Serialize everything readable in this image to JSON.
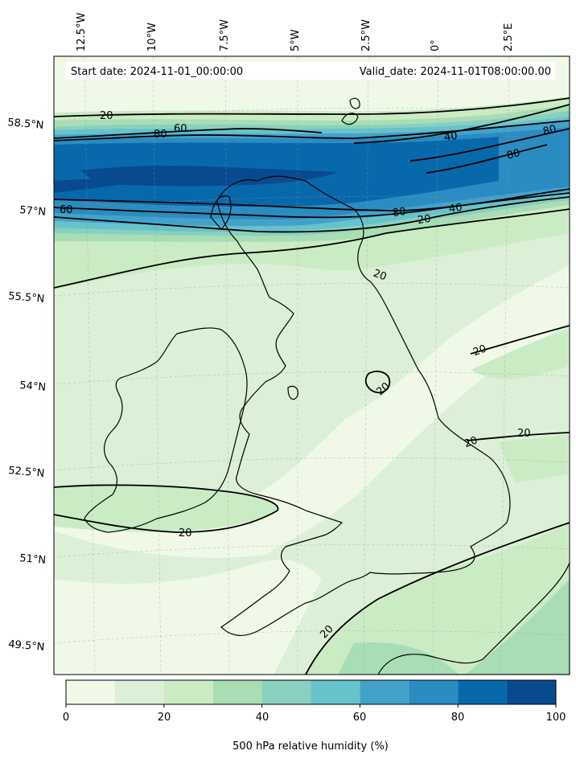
{
  "map": {
    "start_date_text": "Start date: 2024-11-01_00:00:00",
    "valid_date_text": "Valid_date: 2024-11-01T08:00:00.00",
    "lon_ticks": [
      "12.5°W",
      "10°W",
      "7.5°W",
      "5°W",
      "2.5°W",
      "0°",
      "2.5°E"
    ],
    "lat_ticks": [
      "58.5°N",
      "57°N",
      "55.5°N",
      "54°N",
      "52.5°N",
      "51°N",
      "49.5°N"
    ],
    "contour_labels": [
      {
        "text": "20",
        "level": 20
      },
      {
        "text": "60",
        "level": 60
      },
      {
        "text": "80",
        "level": 80
      },
      {
        "text": "60",
        "level": 60
      },
      {
        "text": "40",
        "level": 40
      },
      {
        "text": "80",
        "level": 80
      },
      {
        "text": "80",
        "level": 80
      },
      {
        "text": "80",
        "level": 80
      },
      {
        "text": "20",
        "level": 20
      },
      {
        "text": "40",
        "level": 40
      },
      {
        "text": "20",
        "level": 20
      },
      {
        "text": "20",
        "level": 20
      },
      {
        "text": "20",
        "level": 20
      },
      {
        "text": "20",
        "level": 20
      },
      {
        "text": "20",
        "level": 20
      },
      {
        "text": "20",
        "level": 20
      },
      {
        "text": "20",
        "level": 20
      }
    ],
    "colors": {
      "band_0_10": "#f0f9e8",
      "band_10_20": "#dbf0d7",
      "band_20_30": "#cbebc5",
      "band_30_40": "#a8ddb5",
      "band_40_50": "#89d0c0",
      "band_50_60": "#66c2cb",
      "band_60_70": "#43a2ca",
      "band_70_80": "#2a8cc0",
      "band_80_90": "#0868ac",
      "band_90_100": "#084a8f",
      "contour_line": "#000000",
      "coastline": "#000000"
    }
  },
  "colorbar": {
    "label": "500 hPa relative humidity (%)",
    "ticks": [
      "0",
      "20",
      "40",
      "60",
      "80",
      "100"
    ],
    "levels": [
      0,
      10,
      20,
      30,
      40,
      50,
      60,
      70,
      80,
      90,
      100
    ]
  }
}
